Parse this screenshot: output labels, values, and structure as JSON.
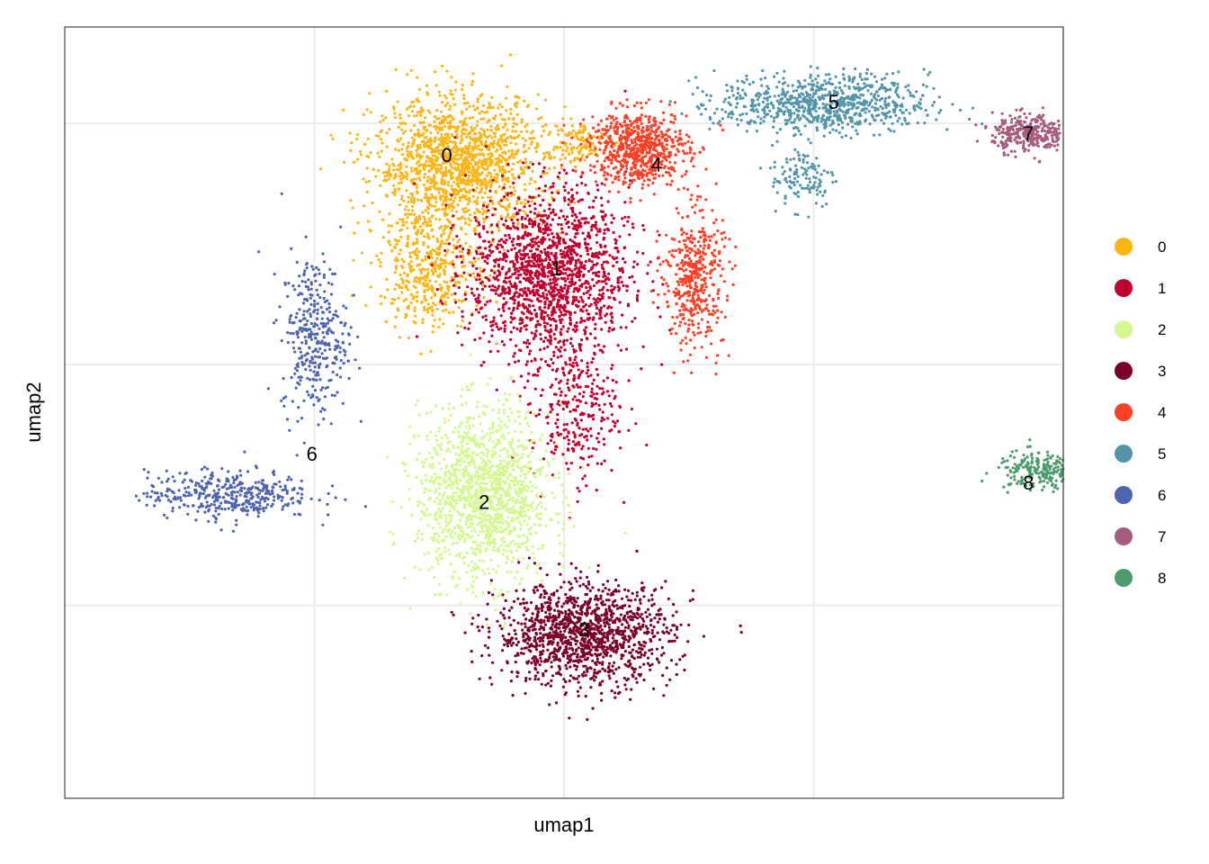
{
  "chart_data": {
    "type": "scatter",
    "xlabel": "umap1",
    "ylabel": "umap2",
    "xlim": [
      -10,
      10
    ],
    "ylim": [
      -9,
      7
    ],
    "grid": true,
    "tick_labels": "none",
    "legend_position": "right",
    "legend_title": "",
    "clusters": [
      {
        "name": "0",
        "color": "#FDB515",
        "label_xy": [
          -2.35,
          4.35
        ],
        "blobs": [
          {
            "center": [
              -2.1,
              4.15
            ],
            "spread": [
              1.55,
              1.25
            ],
            "weight": 1500
          },
          {
            "center": [
              -2.7,
              2.0
            ],
            "spread": [
              0.9,
              1.1
            ],
            "weight": 450
          },
          {
            "center": [
              0.2,
              4.6
            ],
            "spread": [
              0.6,
              0.4
            ],
            "weight": 120
          }
        ]
      },
      {
        "name": "1",
        "color": "#C1002F",
        "label_xy": [
          -0.15,
          2.0
        ],
        "blobs": [
          {
            "center": [
              -0.3,
              1.9
            ],
            "spread": [
              1.45,
              1.6
            ],
            "weight": 1600
          },
          {
            "center": [
              0.2,
              -0.9
            ],
            "spread": [
              0.8,
              1.4
            ],
            "weight": 300
          }
        ]
      },
      {
        "name": "2",
        "color": "#D3F88F",
        "label_xy": [
          -1.6,
          -2.85
        ],
        "blobs": [
          {
            "center": [
              -1.6,
              -2.7
            ],
            "spread": [
              1.2,
              1.6
            ],
            "weight": 1400
          }
        ]
      },
      {
        "name": "3",
        "color": "#7A002B",
        "label_xy": [
          0.4,
          -5.5
        ],
        "blobs": [
          {
            "center": [
              0.4,
              -5.6
            ],
            "spread": [
              1.6,
              0.95
            ],
            "weight": 1300
          }
        ]
      },
      {
        "name": "4",
        "color": "#FC4128",
        "label_xy": [
          1.85,
          4.15
        ],
        "blobs": [
          {
            "center": [
              1.5,
              4.5
            ],
            "spread": [
              0.9,
              0.7
            ],
            "weight": 700
          },
          {
            "center": [
              2.6,
              1.8
            ],
            "spread": [
              0.55,
              1.3
            ],
            "weight": 450
          }
        ]
      },
      {
        "name": "5",
        "color": "#5295AB",
        "label_xy": [
          5.4,
          5.45
        ],
        "blobs": [
          {
            "center": [
              5.2,
              5.4
            ],
            "spread": [
              1.9,
              0.55
            ],
            "weight": 800
          },
          {
            "center": [
              4.8,
              3.9
            ],
            "spread": [
              0.6,
              0.6
            ],
            "weight": 120
          }
        ]
      },
      {
        "name": "6",
        "color": "#4D64AE",
        "label_xy": [
          -5.05,
          -1.85
        ],
        "blobs": [
          {
            "center": [
              -5.0,
              0.6
            ],
            "spread": [
              0.6,
              1.5
            ],
            "weight": 350
          },
          {
            "center": [
              -6.7,
              -2.7
            ],
            "spread": [
              1.5,
              0.45
            ],
            "weight": 400
          }
        ]
      },
      {
        "name": "7",
        "color": "#A55A7E",
        "label_xy": [
          9.3,
          4.8
        ],
        "blobs": [
          {
            "center": [
              9.3,
              4.8
            ],
            "spread": [
              0.65,
              0.35
            ],
            "weight": 320
          }
        ]
      },
      {
        "name": "8",
        "color": "#4C9B6B",
        "label_xy": [
          9.3,
          -2.45
        ],
        "blobs": [
          {
            "center": [
              9.5,
              -2.2
            ],
            "spread": [
              0.75,
              0.35
            ],
            "weight": 220
          }
        ]
      }
    ]
  }
}
